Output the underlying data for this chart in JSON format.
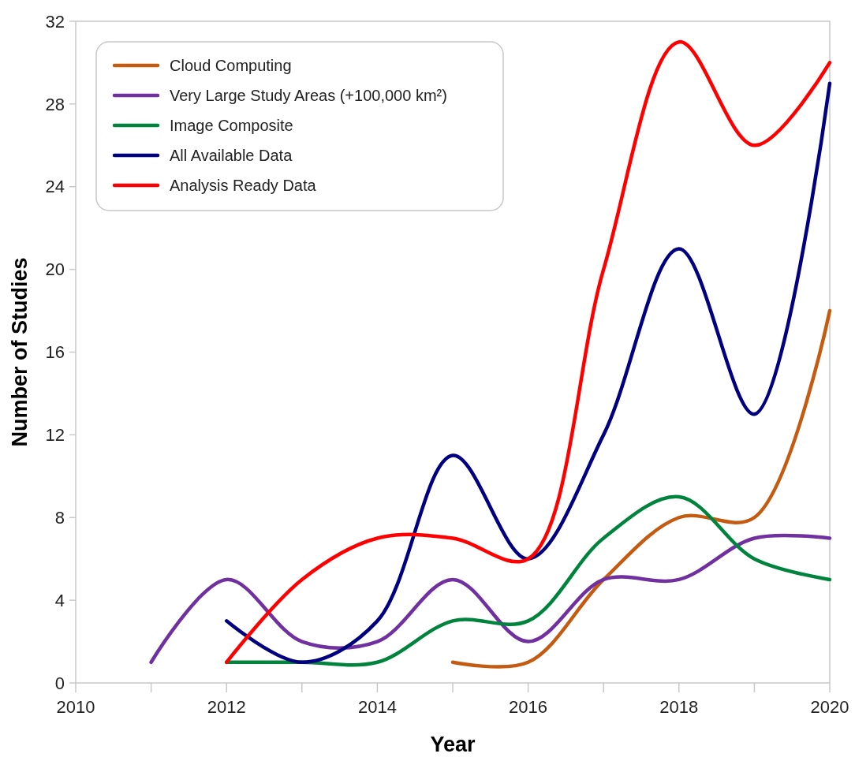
{
  "chart_data": {
    "type": "line",
    "xlabel": "Year",
    "ylabel": "Number of Studies",
    "xlim": [
      2010,
      2020
    ],
    "ylim": [
      0,
      32
    ],
    "xticks": [
      2010,
      {
        "value": 2011,
        "label": null
      },
      2012,
      {
        "value": 2013,
        "label": null
      },
      2014,
      {
        "value": 2015,
        "label": null
      },
      2016,
      {
        "value": 2017,
        "label": null
      },
      2018,
      {
        "value": 2019,
        "label": null
      },
      2020
    ],
    "yticks": [
      0,
      4,
      8,
      12,
      16,
      20,
      24,
      28,
      32
    ],
    "grid": false,
    "legend": "top left",
    "marker": "none",
    "line_style": "solid",
    "series": [
      {
        "name": "Cloud Computing",
        "color": "#c55a11",
        "x": [
          2015,
          2016,
          2017,
          2018,
          2019,
          2020
        ],
        "values": [
          1,
          1,
          5,
          8,
          8,
          18
        ]
      },
      {
        "name": "Very Large Study Areas (+100,000 km²)",
        "color": "#7030a0",
        "x": [
          2011,
          2012,
          2013,
          2014,
          2015,
          2016,
          2017,
          2018,
          2019,
          2020
        ],
        "values": [
          1,
          5,
          2,
          2,
          5,
          2,
          5,
          5,
          7,
          7
        ]
      },
      {
        "name": "Image Composite",
        "color": "#00843d",
        "x": [
          2012,
          2013,
          2014,
          2015,
          2016,
          2017,
          2018,
          2019,
          2020
        ],
        "values": [
          1,
          1,
          1,
          3,
          3,
          7,
          9,
          6,
          5
        ]
      },
      {
        "name": "All Available Data",
        "color": "#000080",
        "x": [
          2012,
          2013,
          2014,
          2015,
          2016,
          2017,
          2018,
          2019,
          2020
        ],
        "values": [
          3,
          1,
          3,
          11,
          6,
          12,
          21,
          13,
          29
        ]
      },
      {
        "name": "Analysis Ready Data",
        "color": "#ff0000",
        "x": [
          2012,
          2013,
          2014,
          2015,
          2016,
          2017,
          2018,
          2019,
          2020
        ],
        "values": [
          1,
          5,
          7,
          7,
          6,
          20,
          31,
          26,
          30
        ]
      }
    ]
  }
}
